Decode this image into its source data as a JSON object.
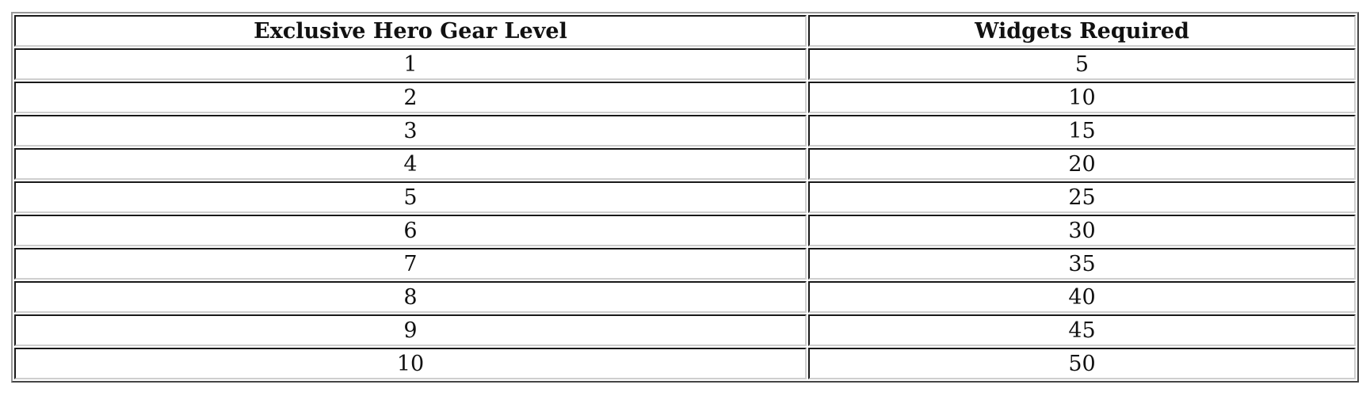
{
  "table": {
    "headers": [
      "Exclusive Hero Gear Level",
      "Widgets Required"
    ],
    "rows": [
      [
        "1",
        "5"
      ],
      [
        "2",
        "10"
      ],
      [
        "3",
        "15"
      ],
      [
        "4",
        "20"
      ],
      [
        "5",
        "25"
      ],
      [
        "6",
        "30"
      ],
      [
        "7",
        "35"
      ],
      [
        "8",
        "40"
      ],
      [
        "9",
        "45"
      ],
      [
        "10",
        "50"
      ]
    ]
  }
}
